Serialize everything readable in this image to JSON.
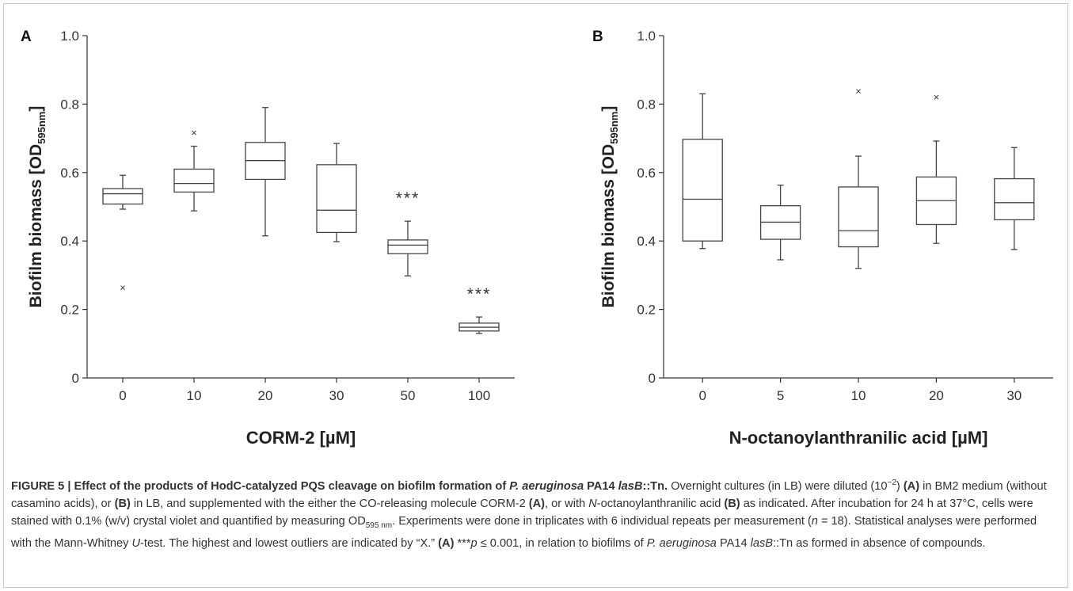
{
  "chart_data": [
    {
      "panel_label": "A",
      "type": "boxplot",
      "xlabel": "CORM-2 [µM]",
      "ylabel_main": "Biofilm biomass [OD",
      "ylabel_sub": "595nm",
      "ylabel_end": "]",
      "ylim": [
        0,
        1.0
      ],
      "yticks": [
        "0",
        "0.2",
        "0.4",
        "0.6",
        "0.8",
        "1.0"
      ],
      "categories": [
        "0",
        "10",
        "20",
        "30",
        "50",
        "100"
      ],
      "boxes": [
        {
          "q1": 0.508,
          "median": 0.538,
          "q3": 0.553,
          "wlo": 0.493,
          "whi": 0.592,
          "outliers": [
            0.263
          ]
        },
        {
          "q1": 0.543,
          "median": 0.568,
          "q3": 0.61,
          "wlo": 0.488,
          "whi": 0.677,
          "outliers": [
            0.715
          ]
        },
        {
          "q1": 0.58,
          "median": 0.635,
          "q3": 0.688,
          "wlo": 0.415,
          "whi": 0.79,
          "outliers": []
        },
        {
          "q1": 0.425,
          "median": 0.49,
          "q3": 0.623,
          "wlo": 0.398,
          "whi": 0.685,
          "outliers": []
        },
        {
          "q1": 0.363,
          "median": 0.388,
          "q3": 0.403,
          "wlo": 0.298,
          "whi": 0.458,
          "outliers": []
        },
        {
          "q1": 0.137,
          "median": 0.148,
          "q3": 0.16,
          "wlo": 0.13,
          "whi": 0.178,
          "outliers": []
        }
      ],
      "significance": [
        {
          "category": "50",
          "text": "***"
        },
        {
          "category": "100",
          "text": "***"
        }
      ]
    },
    {
      "panel_label": "B",
      "type": "boxplot",
      "xlabel": "N-octanoylanthranilic acid  [µM]",
      "ylabel_main": "Biofilm biomass [OD",
      "ylabel_sub": "595nm",
      "ylabel_end": "]",
      "ylim": [
        0,
        1.0
      ],
      "yticks": [
        "0",
        "0.2",
        "0.4",
        "0.6",
        "0.8",
        "1.0"
      ],
      "categories": [
        "0",
        "5",
        "10",
        "20",
        "30"
      ],
      "boxes": [
        {
          "q1": 0.4,
          "median": 0.522,
          "q3": 0.697,
          "wlo": 0.378,
          "whi": 0.83,
          "outliers": []
        },
        {
          "q1": 0.405,
          "median": 0.455,
          "q3": 0.503,
          "wlo": 0.345,
          "whi": 0.563,
          "outliers": []
        },
        {
          "q1": 0.383,
          "median": 0.43,
          "q3": 0.558,
          "wlo": 0.32,
          "whi": 0.648,
          "outliers": [
            0.837
          ]
        },
        {
          "q1": 0.448,
          "median": 0.518,
          "q3": 0.587,
          "wlo": 0.393,
          "whi": 0.692,
          "outliers": [
            0.82
          ]
        },
        {
          "q1": 0.462,
          "median": 0.512,
          "q3": 0.582,
          "wlo": 0.375,
          "whi": 0.673,
          "outliers": []
        }
      ],
      "significance": []
    }
  ],
  "outlier_symbol": "×",
  "caption": {
    "s1": "FIGURE 5 | Effect of the products of HodC-catalyzed PQS cleavage on biofilm formation of ",
    "s2": "P. aeruginosa",
    "s3": " PA14 ",
    "s4": "lasB",
    "s5": "::Tn.",
    "s6": " Overnight cultures (in LB) were diluted (10",
    "s7": "−2",
    "s8": ") ",
    "s9": "(A)",
    "s10": " in BM2 medium (without casamino acids), or ",
    "s11": "(B)",
    "s12": " in LB, and supplemented with the either the CO-releasing molecule CORM-2 ",
    "s13": "(A)",
    "s14": ", or with ",
    "s15": "N",
    "s16": "-octanoylanthranilic acid ",
    "s17": "(B)",
    "s18": " as indicated. After incubation for 24 h at 37°C, cells were stained with 0.1% (w/v) crystal violet and quantified by measuring OD",
    "s19": "595 nm",
    "s20": ". Experiments were done in triplicates with 6 individual repeats per measurement (",
    "s21": "n",
    "s22": " = 18). Statistical analyses were performed with the Mann-Whitney ",
    "s23": "U",
    "s24": "-test. The highest and lowest outliers are indicated by “X.” ",
    "s25": "(A)",
    "s26": " ***",
    "s27": "p",
    "s28": " ≤ 0.001, in relation to biofilms of ",
    "s29": "P. aeruginosa",
    "s30": " PA14 ",
    "s31": "lasB",
    "s32": "::Tn as formed in absence of compounds."
  }
}
